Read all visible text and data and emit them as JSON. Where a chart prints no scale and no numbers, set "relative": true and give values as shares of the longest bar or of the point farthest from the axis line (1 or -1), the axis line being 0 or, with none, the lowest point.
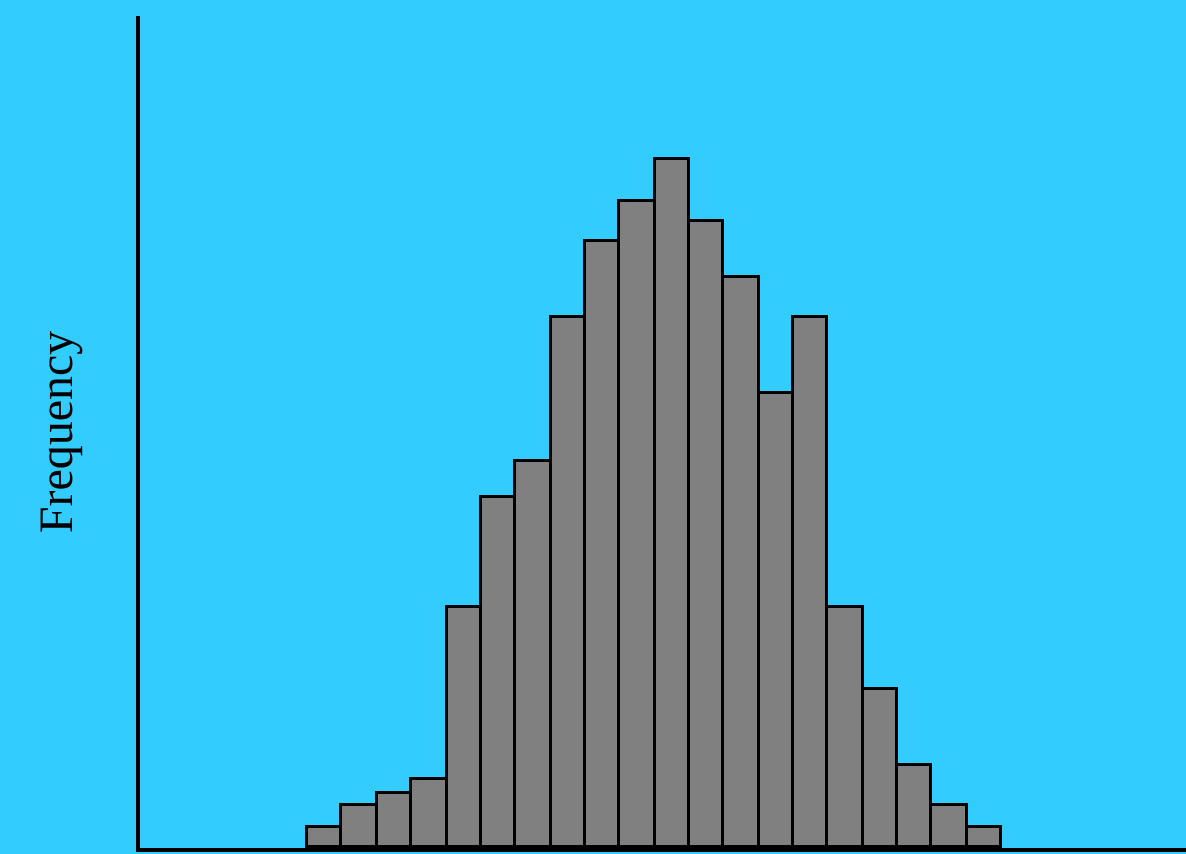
{
  "chart_data": {
    "type": "bar",
    "relative": true,
    "ylabel": "Frequency",
    "color": "#808080",
    "categories": [
      null,
      null,
      null,
      null,
      null,
      null,
      null,
      null,
      null,
      null,
      null,
      null,
      null,
      null,
      null,
      null,
      null,
      null,
      null,
      null
    ],
    "values": [
      0.03,
      0.06,
      0.08,
      0.1,
      0.35,
      0.51,
      0.56,
      0.77,
      0.88,
      0.94,
      1,
      0.91,
      0.83,
      0.66,
      0.77,
      0.35,
      0.23,
      0.12,
      0.06,
      0.03
    ],
    "grid": false
  }
}
